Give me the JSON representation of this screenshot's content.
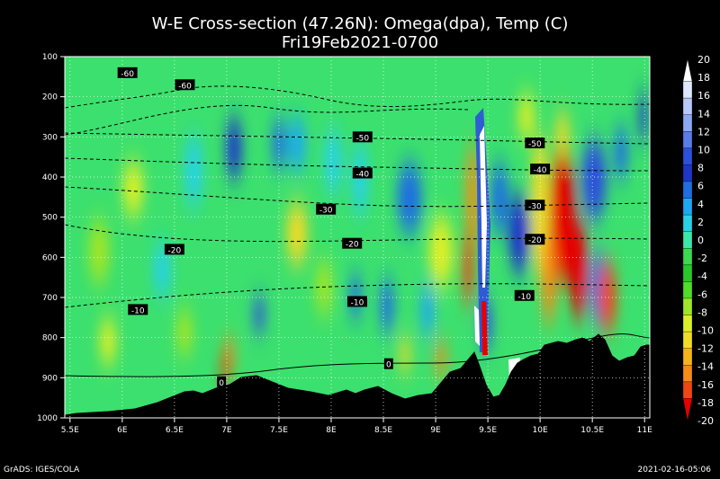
{
  "title": "W-E Cross-section (47.26N): Omega(dpa), Temp (C)",
  "subtitle": "Fri19Feb2021-0700",
  "footer_left": "GrADS: IGES/COLA",
  "footer_right": "2021-02-16-05:06",
  "chart_data": {
    "type": "heatmap",
    "title": "W-E Cross-section (47.26N): Omega(dpa), Temp (C)",
    "subtitle": "Fri19Feb2021-0700",
    "x_ticks": [
      "5.5E",
      "6E",
      "6.5E",
      "7E",
      "7.5E",
      "8E",
      "8.5E",
      "9E",
      "9.5E",
      "10E",
      "10.5E",
      "11E"
    ],
    "x_values": [
      5.5,
      6,
      6.5,
      7,
      7.5,
      8,
      8.5,
      9,
      9.5,
      10,
      10.5,
      11
    ],
    "xlim": [
      5.45,
      11.05
    ],
    "y_ticks": [
      "100",
      "200",
      "300",
      "400",
      "500",
      "600",
      "700",
      "800",
      "900",
      "1000"
    ],
    "y_values": [
      100,
      200,
      300,
      400,
      500,
      600,
      700,
      800,
      900,
      1000
    ],
    "ylim": [
      100,
      1000
    ],
    "y_inverted": true,
    "grid": true,
    "colorbar": {
      "labels": [
        "20",
        "18",
        "16",
        "14",
        "12",
        "10",
        "8",
        "6",
        "4",
        "2",
        "0",
        "-2",
        "-4",
        "-6",
        "-8",
        "-10",
        "-12",
        "-14",
        "-16",
        "-18",
        "-20"
      ],
      "colors": [
        "#ffffff",
        "#dde8ff",
        "#b8c8f8",
        "#8ca8f0",
        "#5a7ce8",
        "#2c50dc",
        "#1e36c8",
        "#1e6ee0",
        "#1ea8f0",
        "#28d2e6",
        "#3ce6aa",
        "#3cd850",
        "#28c828",
        "#50dc28",
        "#a0e628",
        "#dcf028",
        "#f0dc28",
        "#f5b419",
        "#f58c14",
        "#f04614",
        "#e60000"
      ],
      "placement": "right"
    },
    "temperature_contour_labels": [
      {
        "label": "-60",
        "x": 6.05,
        "p": 140
      },
      {
        "label": "-60",
        "x": 6.6,
        "p": 170
      },
      {
        "label": "-50",
        "x": 8.3,
        "p": 300
      },
      {
        "label": "-50",
        "x": 9.95,
        "p": 315
      },
      {
        "label": "-40",
        "x": 8.3,
        "p": 390
      },
      {
        "label": "-40",
        "x": 10.0,
        "p": 380
      },
      {
        "label": "-30",
        "x": 7.95,
        "p": 480
      },
      {
        "label": "-30",
        "x": 9.95,
        "p": 470
      },
      {
        "label": "-20",
        "x": 6.5,
        "p": 580
      },
      {
        "label": "-20",
        "x": 8.2,
        "p": 565
      },
      {
        "label": "-20",
        "x": 9.95,
        "p": 555
      },
      {
        "label": "-10",
        "x": 6.15,
        "p": 730
      },
      {
        "label": "-10",
        "x": 8.25,
        "p": 710
      },
      {
        "label": "-10",
        "x": 9.85,
        "p": 695
      },
      {
        "label": "0",
        "x": 6.95,
        "p": 910
      },
      {
        "label": "0",
        "x": 8.55,
        "p": 865
      }
    ]
  }
}
